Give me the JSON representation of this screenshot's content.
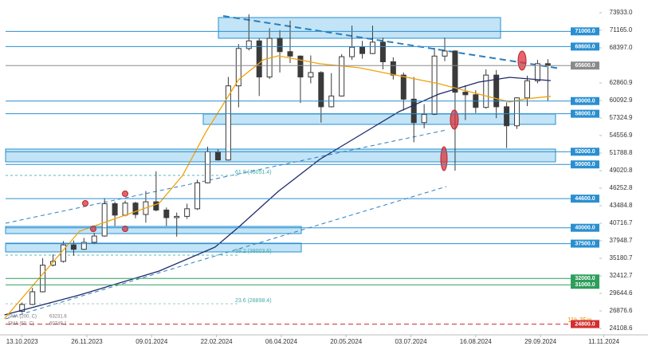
{
  "chart_data": {
    "type": "candlestick",
    "candle_color": "#3a3a3a",
    "xlim": [
      -15,
      425
    ],
    "ylim": [
      23100,
      75950
    ],
    "xticks": [
      {
        "value": 0,
        "label": "13.10.2023"
      },
      {
        "value": 44,
        "label": "26.11.2023"
      },
      {
        "value": 88,
        "label": "09.01.2024"
      },
      {
        "value": 132,
        "label": "22.02.2024"
      },
      {
        "value": 176,
        "label": "06.04.2024"
      },
      {
        "value": 220,
        "label": "20.05.2024"
      },
      {
        "value": 264,
        "label": "03.07.2024"
      },
      {
        "value": 308,
        "label": "16.08.2024"
      },
      {
        "value": 352,
        "label": "29.09.2024"
      },
      {
        "value": 395,
        "label": "11.11.2024"
      }
    ],
    "yticks": [
      {
        "value": 73933,
        "label": "73933.0"
      },
      {
        "value": 71165,
        "label": "71165.0"
      },
      {
        "value": 68397,
        "label": "68397.0"
      },
      {
        "value": 62860.9,
        "label": "62860.9"
      },
      {
        "value": 60092.9,
        "label": "60092.9"
      },
      {
        "value": 57324.9,
        "label": "57324.9"
      },
      {
        "value": 54556.9,
        "label": "54556.9"
      },
      {
        "value": 51788.8,
        "label": "51788.8"
      },
      {
        "value": 49020.8,
        "label": "49020.8"
      },
      {
        "value": 46252.8,
        "label": "46252.8"
      },
      {
        "value": 43484.8,
        "label": "43484.8"
      },
      {
        "value": 40716.7,
        "label": "40716.7"
      },
      {
        "value": 37948.7,
        "label": "37948.7"
      },
      {
        "value": 35180.7,
        "label": "35180.7"
      },
      {
        "value": 32412.7,
        "label": "32412.7"
      },
      {
        "value": 29644.6,
        "label": "29644.6"
      },
      {
        "value": 26876.6,
        "label": "26876.6"
      },
      {
        "value": 24108.6,
        "label": "24108.6"
      }
    ],
    "current_price": {
      "value": 65600,
      "label": "65600.0",
      "color": "#8a8a8a"
    },
    "levels": [
      {
        "value": 71000,
        "label": "71000.0",
        "color": "#2a8fd0",
        "dashed": false
      },
      {
        "value": 68600,
        "label": "68600.0",
        "color": "#2a8fd0",
        "dashed": false
      },
      {
        "value": 60000,
        "label": "60000.0",
        "color": "#2a8fd0",
        "dashed": false
      },
      {
        "value": 58000,
        "label": "58000.0",
        "color": "#2a8fd0",
        "dashed": false
      },
      {
        "value": 52000,
        "label": "52000.0",
        "color": "#2a8fd0",
        "dashed": false
      },
      {
        "value": 50000,
        "label": "50000.0",
        "color": "#2a8fd0",
        "dashed": false
      },
      {
        "value": 44600,
        "label": "44600.0",
        "color": "#2a8fd0",
        "dashed": false
      },
      {
        "value": 40000,
        "label": "40000.0",
        "color": "#2a8fd0",
        "dashed": false
      },
      {
        "value": 37500,
        "label": "37500.0",
        "color": "#2a8fd0",
        "dashed": false
      },
      {
        "value": 32000,
        "label": "32000.0",
        "color": "#2e9e5b",
        "dashed": false
      },
      {
        "value": 31000,
        "label": "31000.0",
        "color": "#2e9e5b",
        "dashed": false
      },
      {
        "value": 24800,
        "label": "24800.0",
        "color": "#d32f2f",
        "dashed": true
      }
    ],
    "annotations": [
      "61.8 (46051.4)",
      "38.2 (38003.6)",
      "23.6 (28898.4)",
      "11h 35m"
    ],
    "x": [
      0,
      7,
      14,
      21,
      28,
      35,
      42,
      49,
      56,
      63,
      70,
      77,
      84,
      91,
      98,
      105,
      112,
      119,
      126,
      133,
      140,
      147,
      154,
      161,
      168,
      175,
      182,
      189,
      196,
      203,
      210,
      217,
      224,
      231,
      238,
      245,
      252,
      259,
      266,
      273,
      280,
      287,
      294,
      301,
      308,
      315,
      322,
      329,
      336,
      343,
      350,
      357
    ],
    "open": [
      26800,
      27900,
      29900,
      34100,
      34700,
      37300,
      36600,
      37700,
      38700,
      43800,
      42000,
      43900,
      42100,
      44100,
      42800,
      41600,
      41800,
      43000,
      47100,
      52000,
      50700,
      62400,
      68300,
      69500,
      63800,
      69900,
      67800,
      67100,
      63800,
      64500,
      59100,
      60800,
      67000,
      68500,
      67500,
      69300,
      66200,
      64100,
      60300,
      56600,
      57900,
      67100,
      67900,
      61400,
      61000,
      59000,
      64100,
      59100,
      56100,
      60500,
      63200,
      65900
    ],
    "high": [
      28200,
      30500,
      35200,
      35800,
      37900,
      38000,
      38400,
      39200,
      44700,
      44100,
      44300,
      44100,
      45800,
      48900,
      43200,
      42400,
      43800,
      47600,
      52800,
      52400,
      63800,
      69000,
      73700,
      69900,
      71500,
      71200,
      72700,
      67200,
      67200,
      64700,
      64400,
      67400,
      71900,
      69500,
      71900,
      70000,
      66900,
      64500,
      63800,
      59500,
      68400,
      70000,
      68000,
      62500,
      61700,
      65000,
      64900,
      59800,
      60600,
      64000,
      66500,
      66600
    ],
    "low": [
      26600,
      27800,
      29800,
      33900,
      34500,
      35600,
      36500,
      37400,
      38600,
      40300,
      41800,
      41500,
      40800,
      42600,
      40300,
      38600,
      41400,
      42800,
      47000,
      50600,
      50600,
      59000,
      68000,
      60800,
      63500,
      64500,
      66000,
      59700,
      62800,
      56600,
      59000,
      60700,
      66500,
      66700,
      67400,
      65000,
      63400,
      58500,
      53500,
      55700,
      57800,
      66300,
      49000,
      57000,
      58100,
      58800,
      57300,
      52600,
      55600,
      59200,
      62800,
      60000
    ],
    "close": [
      27900,
      29900,
      34100,
      34700,
      37300,
      36600,
      37700,
      38700,
      43800,
      42000,
      43900,
      42100,
      44100,
      42800,
      41600,
      41800,
      43000,
      47100,
      52000,
      50700,
      62400,
      68300,
      69500,
      63800,
      69900,
      67800,
      67100,
      63800,
      64500,
      59100,
      60800,
      67000,
      68500,
      67500,
      69300,
      66200,
      64100,
      60300,
      56600,
      57900,
      67100,
      67900,
      61400,
      61000,
      59000,
      64100,
      59100,
      56100,
      60500,
      63200,
      65900,
      65600
    ],
    "series": [
      {
        "name": "SMA (200, C)",
        "color": "#1f2a6b",
        "x": [
          -12,
          39,
          93,
          131,
          147,
          174,
          202,
          229,
          256,
          283,
          310,
          331,
          359
        ],
        "values": [
          26245,
          29390,
          33170,
          36940,
          40090,
          45750,
          50780,
          54560,
          58330,
          61100,
          62990,
          63745,
          63231.6
        ]
      },
      {
        "name": "SMA (50, C)",
        "color": "#f0a30a",
        "x": [
          -12,
          39,
          93,
          109,
          125,
          147,
          164,
          174,
          202,
          229,
          256,
          283,
          310,
          331,
          342,
          359
        ],
        "values": [
          25660,
          39460,
          43860,
          48270,
          55190,
          63370,
          66520,
          67140,
          65890,
          65250,
          63990,
          62740,
          61100,
          59850,
          60350,
          60749.1
        ]
      }
    ]
  }
}
